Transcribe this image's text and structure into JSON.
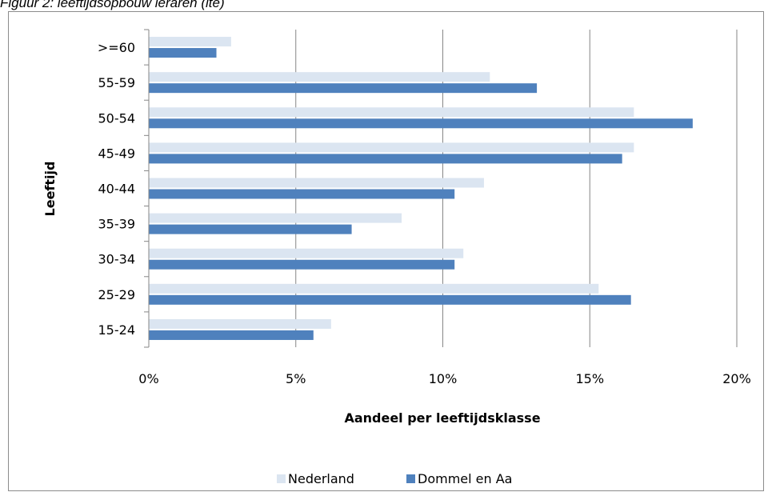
{
  "caption": "Figuur 2:  leeftijdsopbouw leraren (lte)",
  "chart_data": {
    "type": "bar",
    "orientation": "horizontal",
    "title": "",
    "xlabel": "Aandeel per leeftijdsklasse",
    "ylabel": "Leeftijd",
    "xlim": [
      0,
      20
    ],
    "x_ticks": [
      "0%",
      "5%",
      "10%",
      "15%",
      "20%"
    ],
    "grid": true,
    "legend_position": "bottom",
    "categories": [
      ">=60",
      "55-59",
      "50-54",
      "45-49",
      "40-44",
      "35-39",
      "30-34",
      "25-29",
      "15-24"
    ],
    "series": [
      {
        "name": "Nederland",
        "color": "#dbe5f1",
        "values": [
          2.8,
          11.6,
          16.5,
          16.5,
          11.4,
          8.6,
          10.7,
          15.3,
          6.2
        ]
      },
      {
        "name": "Dommel en Aa",
        "color": "#4f81bd",
        "values": [
          2.3,
          13.2,
          18.5,
          16.1,
          10.4,
          6.9,
          10.4,
          16.4,
          5.6
        ]
      }
    ]
  }
}
